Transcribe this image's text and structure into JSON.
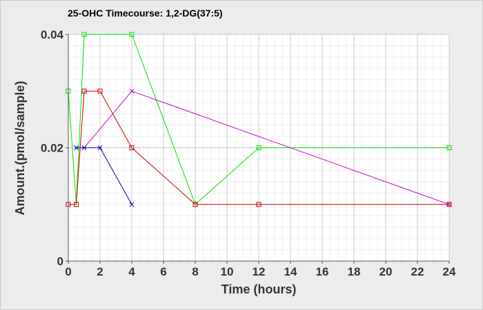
{
  "chart_data": {
    "type": "line",
    "title": "25-OHC Timecourse: 1,2-DG(37:5)",
    "xlabel": "Time (hours)",
    "ylabel": "Amount.(pmol/sample)",
    "xlim": [
      0,
      24
    ],
    "ylim": [
      0,
      0.04
    ],
    "xticks": [
      0,
      2,
      4,
      6,
      8,
      10,
      12,
      14,
      16,
      18,
      20,
      22,
      24
    ],
    "yticks": [
      {
        "value": 0,
        "label": "0"
      },
      {
        "value": 0.02,
        "label": "0.02"
      },
      {
        "value": 0.04,
        "label": "0.04"
      }
    ],
    "grid": true,
    "legend": "none",
    "series": [
      {
        "color": "#00dd00",
        "marker": "square",
        "x": [
          0,
          0.5,
          1,
          4,
          8,
          12,
          24
        ],
        "y": [
          0.03,
          0.01,
          0.04,
          0.04,
          0.01,
          0.02,
          0.02
        ]
      },
      {
        "color": "#cc0000",
        "marker": "square",
        "x": [
          0,
          0.5,
          1,
          2,
          4,
          8,
          12,
          24
        ],
        "y": [
          0.01,
          0.01,
          0.03,
          0.03,
          0.02,
          0.01,
          0.01,
          0.01
        ]
      },
      {
        "color": "#cc00cc",
        "marker": "x",
        "x": [
          0.5,
          1,
          4,
          24
        ],
        "y": [
          0.02,
          0.02,
          0.03,
          0.01
        ]
      },
      {
        "color": "#0000bb",
        "marker": "x",
        "x": [
          0.5,
          1,
          2,
          4
        ],
        "y": [
          0.02,
          0.02,
          0.02,
          0.01
        ]
      }
    ]
  }
}
